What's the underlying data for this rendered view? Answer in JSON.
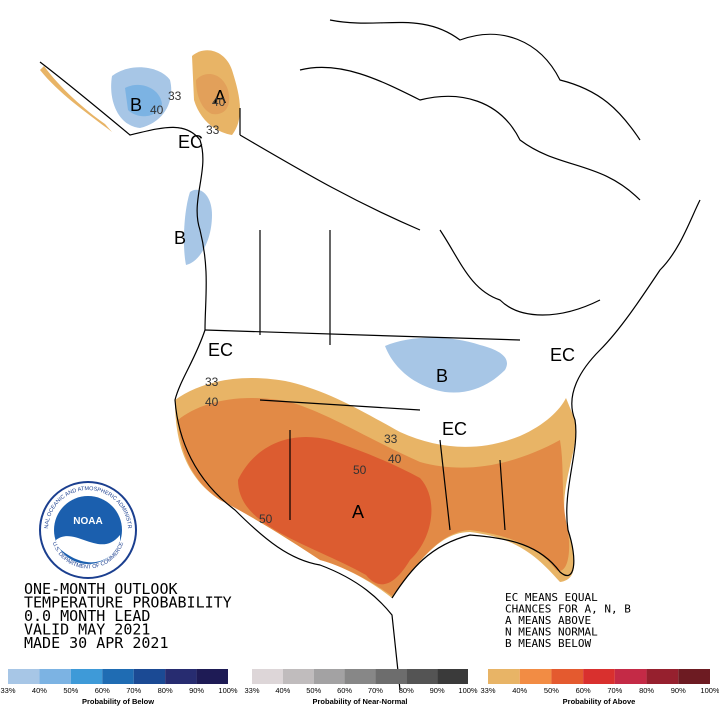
{
  "title_lines": [
    "ONE-MONTH OUTLOOK",
    "TEMPERATURE PROBABILITY",
    "0.0 MONTH LEAD",
    "VALID MAY 2021",
    "MADE 30 APR 2021"
  ],
  "notes": [
    "EC MEANS EQUAL",
    "CHANCES FOR A, N, B",
    "A MEANS ABOVE",
    "N MEANS NORMAL",
    "B MEANS BELOW"
  ],
  "logo": {
    "name": "NOAA",
    "ring_top": "NATIONAL OCEANIC AND ATMOSPHERIC ADMINISTRATION",
    "ring_bottom": "U.S. DEPARTMENT OF COMMERCE"
  },
  "region_labels": [
    "B",
    "A",
    "EC",
    "B",
    "EC",
    "B",
    "EC",
    "EC",
    "A"
  ],
  "contour_labels": [
    "33",
    "40",
    "40",
    "33",
    "33",
    "40",
    "33",
    "40",
    "50",
    "50"
  ],
  "legends": [
    {
      "title": "Probability of Below",
      "labels": [
        "33%",
        "40%",
        "50%",
        "60%",
        "70%",
        "80%",
        "90%",
        "100%"
      ],
      "colors": [
        "#a7c6e6",
        "#7cb3e3",
        "#3e9ad8",
        "#1f6cb3",
        "#1b4a94",
        "#272c70",
        "#1e1b55"
      ]
    },
    {
      "title": "Probability of Near-Normal",
      "labels": [
        "33%",
        "40%",
        "50%",
        "60%",
        "70%",
        "80%",
        "90%",
        "100%"
      ],
      "colors": [
        "#ddd6d8",
        "#c0bcbd",
        "#a3a2a3",
        "#878787",
        "#6d6d6d",
        "#545454",
        "#3a3a3a"
      ]
    },
    {
      "title": "Probability of Above",
      "labels": [
        "33%",
        "40%",
        "50%",
        "60%",
        "70%",
        "80%",
        "90%",
        "100%"
      ],
      "colors": [
        "#e8b466",
        "#f28c44",
        "#e45a2f",
        "#d9302e",
        "#c42a46",
        "#96202e",
        "#6d1b22"
      ]
    }
  ]
}
